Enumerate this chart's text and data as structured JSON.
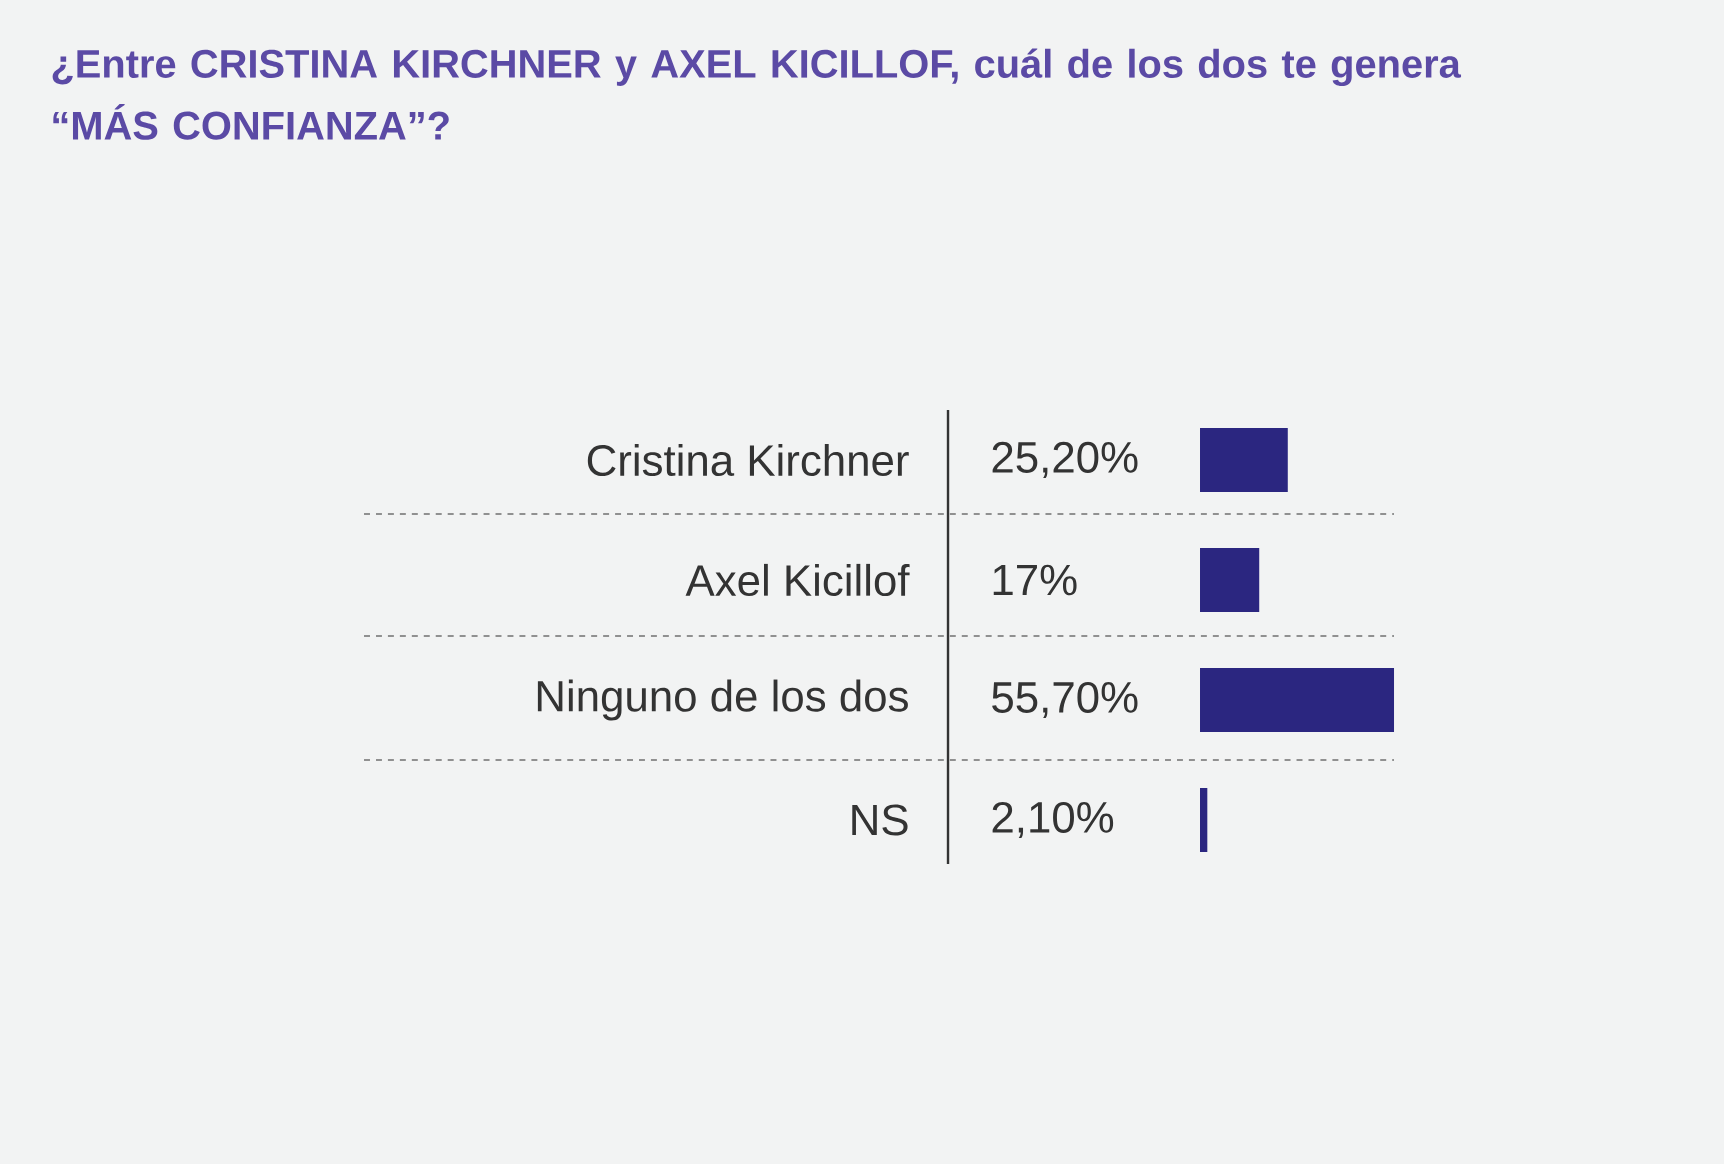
{
  "chart_data": {
    "type": "bar",
    "orientation": "horizontal",
    "title": "¿Entre CRISTINA KIRCHNER y AXEL KICILLOF, cuál de los dos te genera “MÁS CONFIANZA”?",
    "categories": [
      "Cristina Kirchner",
      "Axel Kicillof",
      "Ninguno de los dos",
      "NS"
    ],
    "values": [
      25.2,
      17,
      55.7,
      2.1
    ],
    "value_labels": [
      "25,20%",
      "17%",
      "55,70%",
      "2,10%"
    ],
    "color": "#2b2680"
  }
}
